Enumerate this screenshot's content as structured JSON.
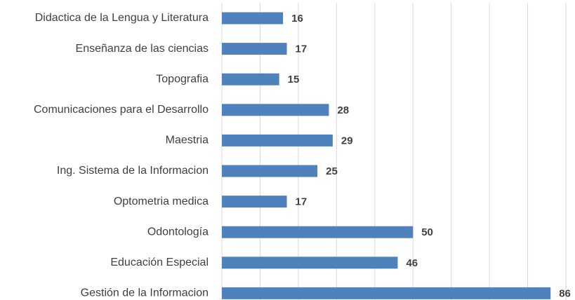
{
  "chart_data": {
    "type": "hbar",
    "categories": [
      "Didactica de la Lengua y Literatura",
      "Enseñanza de las ciencias",
      "Topografia",
      "Comunicaciones para el Desarrollo",
      "Maestria",
      "Ing. Sistema de la Informacion",
      "Optometria medica",
      "Odontología",
      "Educación Especial",
      "Gestión de la Informacion"
    ],
    "values": [
      16,
      17,
      15,
      28,
      29,
      25,
      17,
      50,
      46,
      86
    ],
    "color": "#4f81bd",
    "xlim": [
      0,
      90
    ],
    "xticks": [
      0,
      10,
      20,
      30,
      40,
      50,
      60,
      70,
      80,
      90
    ],
    "grid": true
  }
}
